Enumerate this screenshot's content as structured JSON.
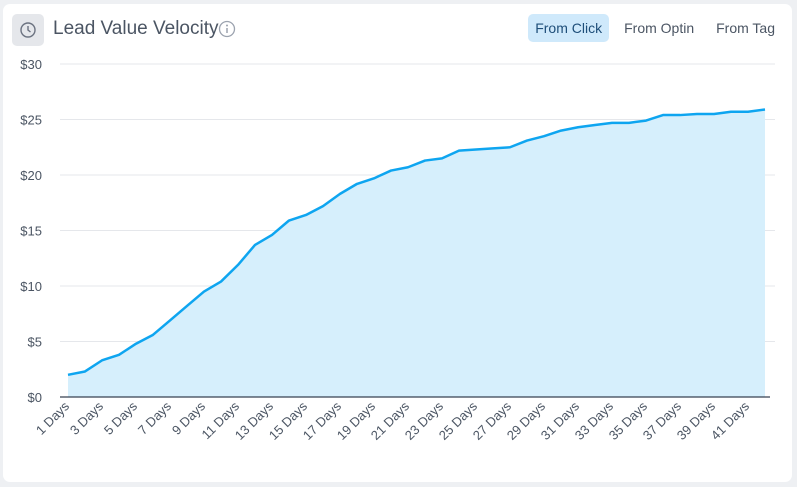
{
  "header": {
    "title": "Lead Value Velocity",
    "icon": "clock-icon",
    "info_icon": "info-icon"
  },
  "tabs": [
    {
      "label": "From Click",
      "active": true
    },
    {
      "label": "From Optin",
      "active": false
    },
    {
      "label": "From Tag",
      "active": false
    }
  ],
  "colors": {
    "line": "#0ea5f0",
    "fill": "#d6effc",
    "active_tab": "#cfe9fb"
  },
  "chart_data": {
    "type": "area",
    "title": "Lead Value Velocity",
    "xlabel": "",
    "ylabel": "",
    "ylim": [
      0,
      30
    ],
    "yticks": [
      "$0",
      "$5",
      "$10",
      "$15",
      "$20",
      "$25",
      "$30"
    ],
    "ytick_values": [
      0,
      5,
      10,
      15,
      20,
      25,
      30
    ],
    "x": [
      "1 Days",
      "2 Days",
      "3 Days",
      "4 Days",
      "5 Days",
      "6 Days",
      "7 Days",
      "8 Days",
      "9 Days",
      "10 Days",
      "11 Days",
      "12 Days",
      "13 Days",
      "14 Days",
      "15 Days",
      "16 Days",
      "17 Days",
      "18 Days",
      "19 Days",
      "20 Days",
      "21 Days",
      "22 Days",
      "23 Days",
      "24 Days",
      "25 Days",
      "26 Days",
      "27 Days",
      "28 Days",
      "29 Days",
      "30 Days",
      "31 Days",
      "32 Days",
      "33 Days",
      "34 Days",
      "35 Days",
      "36 Days",
      "37 Days",
      "38 Days",
      "39 Days",
      "40 Days",
      "41 Days",
      "42 Days"
    ],
    "xtick_labels": [
      "1 Days",
      "3 Days",
      "5 Days",
      "7 Days",
      "9 Days",
      "11 Days",
      "13 Days",
      "15 Days",
      "17 Days",
      "19 Days",
      "21 Days",
      "23 Days",
      "25 Days",
      "27 Days",
      "29 Days",
      "31 Days",
      "33 Days",
      "35 Days",
      "37 Days",
      "39 Days",
      "41 Days"
    ],
    "values": [
      2.0,
      2.3,
      3.3,
      3.8,
      4.8,
      5.6,
      6.9,
      8.2,
      9.5,
      10.4,
      11.9,
      13.7,
      14.6,
      15.9,
      16.4,
      17.2,
      18.3,
      19.2,
      19.7,
      20.4,
      20.7,
      21.3,
      21.5,
      22.2,
      22.3,
      22.4,
      22.5,
      23.1,
      23.5,
      24.0,
      24.3,
      24.5,
      24.7,
      24.7,
      24.9,
      25.4,
      25.4,
      25.5,
      25.5,
      25.7,
      25.7,
      25.9
    ],
    "grid": true,
    "legend": "none"
  }
}
